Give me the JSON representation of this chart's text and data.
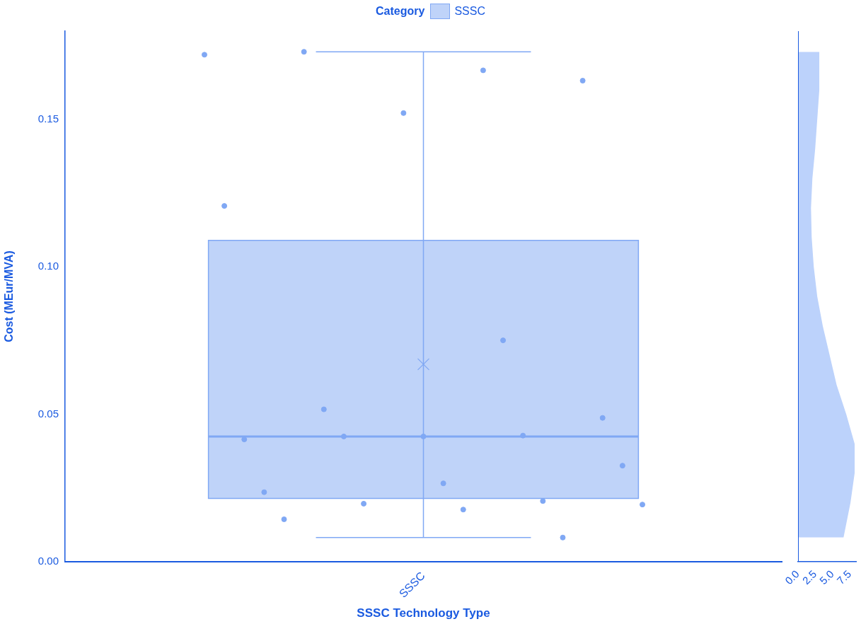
{
  "chart_data": [
    {
      "type": "box",
      "xlabel": "SSSC Technology Type",
      "ylabel": "Cost (MEur/MVA)",
      "legend_title": "Category",
      "legend": "top",
      "grid": false,
      "marker": "circle",
      "categories": [
        "SSSC"
      ],
      "ylim": [
        0,
        0.18
      ],
      "yticks": [
        {
          "value": 0,
          "label": "0.00"
        },
        {
          "value": 0.05,
          "label": "0.05"
        },
        {
          "value": 0.1,
          "label": "0.10"
        },
        {
          "value": 0.15,
          "label": "0.15"
        }
      ],
      "series": [
        {
          "name": "SSSC",
          "color": "#80a8f4",
          "boxes": [
            {
              "low": 0.0082,
              "q1": 0.0215,
              "median": 0.0425,
              "q3": 0.109,
              "high": 0.173,
              "mean": 0.067
            }
          ]
        },
        {
          "type": "scatter",
          "color": "#80a8f4",
          "x": [
            "SSSC",
            "SSSC",
            "SSSC",
            "SSSC",
            "SSSC",
            "SSSC",
            "SSSC",
            "SSSC",
            "SSSC",
            "SSSC",
            "SSSC",
            "SSSC",
            "SSSC",
            "SSSC",
            "SSSC",
            "SSSC",
            "SSSC",
            "SSSC",
            "SSSC",
            "SSSC",
            "SSSC",
            "SSSC"
          ],
          "values": [
            0.172,
            0.1667,
            0.173,
            0.1632,
            0.1522,
            0.1207,
            0.0751,
            0.0517,
            0.0488,
            0.0425,
            0.0415,
            0.0428,
            0.0425,
            0.0326,
            0.0266,
            0.0236,
            0.0206,
            0.0197,
            0.0194,
            0.0177,
            0.0144,
            0.0082
          ]
        }
      ]
    },
    {
      "type": "area",
      "orientation": "horizontal",
      "tick_labels": "x",
      "xlim": [
        0,
        8.5
      ],
      "xticks": [
        {
          "value": 0,
          "label": "0.0"
        },
        {
          "value": 2.5,
          "label": "2.5"
        },
        {
          "value": 5,
          "label": "5.0"
        },
        {
          "value": 7.5,
          "label": "7.5"
        }
      ],
      "ylim": [
        0,
        0.18
      ],
      "grid": false,
      "x": [
        0.0082,
        0.02,
        0.03,
        0.04,
        0.05,
        0.06,
        0.07,
        0.08,
        0.09,
        0.1,
        0.11,
        0.12,
        0.13,
        0.14,
        0.15,
        0.16,
        0.173
      ],
      "series": [
        {
          "color": "#bcd2fb",
          "values": [
            6.6,
            7.6,
            8.2,
            8.2,
            7.0,
            5.6,
            4.6,
            3.6,
            2.8,
            2.3,
            2.0,
            1.9,
            2.1,
            2.5,
            2.8,
            3.1,
            3.1
          ]
        }
      ]
    }
  ]
}
